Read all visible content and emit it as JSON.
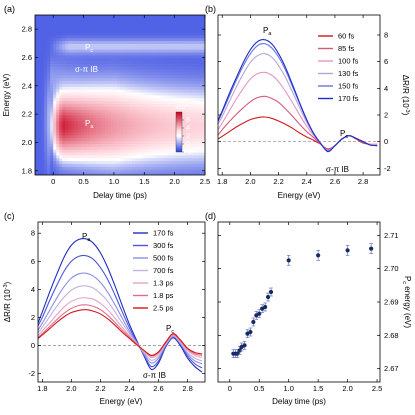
{
  "chart_data": [
    {
      "panel": "(a)",
      "type": "heatmap",
      "xlabel": "Delay time (ps)",
      "ylabel": "Energy (eV)",
      "xlim": [
        -0.3,
        2.5
      ],
      "ylim": [
        1.77,
        2.9
      ],
      "xticks": [
        "0",
        "0.5",
        "1.0",
        "1.5",
        "2.0",
        "2.5"
      ],
      "yticks": [
        "1.8",
        "2.0",
        "2.2",
        "2.4",
        "2.6",
        "2.8"
      ],
      "annotations": [
        "Pc",
        "σ-π IB",
        "Pa"
      ],
      "colorbar": {
        "title": "x10-3",
        "ticks": [
          "6",
          "4",
          "2",
          "0",
          "-2"
        ],
        "range": [
          -2,
          8
        ]
      },
      "colors": {
        "high": "#c8001e",
        "mid": "#ffffff",
        "low": "#2a3fe0"
      }
    },
    {
      "panel": "(b)",
      "type": "line",
      "xlabel": "Energy (eV)",
      "ylabel": "ΔR/R (10-3)",
      "xlim": [
        1.77,
        2.92
      ],
      "ylim": [
        -2.5,
        9.5
      ],
      "xticks": [
        "1.8",
        "2.0",
        "2.2",
        "2.4",
        "2.6",
        "2.8"
      ],
      "yticks": [
        "-2",
        "0",
        "2",
        "4",
        "6",
        "8"
      ],
      "y_axis_side": "right",
      "legend": "right",
      "annotations": [
        "Pa",
        "Pc",
        "σ-π IB"
      ],
      "x": [
        1.77,
        1.8,
        1.85,
        1.9,
        1.95,
        2.0,
        2.05,
        2.1,
        2.15,
        2.2,
        2.25,
        2.3,
        2.35,
        2.4,
        2.45,
        2.5,
        2.55,
        2.6,
        2.65,
        2.7,
        2.75,
        2.8,
        2.85,
        2.9
      ],
      "series": [
        {
          "name": "60 fs",
          "color": "#d11a1a",
          "values": [
            0.2,
            0.4,
            0.75,
            1.1,
            1.4,
            1.65,
            1.8,
            1.85,
            1.75,
            1.55,
            1.3,
            1.0,
            0.65,
            0.35,
            0.1,
            -0.2,
            -0.55,
            -0.3,
            0.2,
            0.45,
            0.2,
            -0.1,
            -0.2,
            -0.2
          ]
        },
        {
          "name": "85 fs",
          "color": "#d65a78",
          "values": [
            0.5,
            0.9,
            1.5,
            2.05,
            2.55,
            3.0,
            3.3,
            3.4,
            3.25,
            2.95,
            2.45,
            1.9,
            1.3,
            0.75,
            0.3,
            -0.2,
            -0.6,
            -0.3,
            0.2,
            0.45,
            0.25,
            -0.05,
            -0.2,
            -0.2
          ]
        },
        {
          "name": "100 fs",
          "color": "#e596be",
          "values": [
            0.9,
            1.4,
            2.3,
            3.2,
            4.0,
            4.7,
            5.1,
            5.2,
            5.0,
            4.5,
            3.75,
            2.9,
            2.0,
            1.15,
            0.45,
            -0.15,
            -0.65,
            -0.3,
            0.2,
            0.45,
            0.25,
            0.0,
            -0.2,
            -0.2
          ]
        },
        {
          "name": "130 fs",
          "color": "#b7a3dc",
          "values": [
            1.3,
            1.9,
            3.0,
            4.1,
            5.1,
            5.95,
            6.45,
            6.6,
            6.35,
            5.7,
            4.8,
            3.7,
            2.55,
            1.45,
            0.55,
            -0.15,
            -0.7,
            -0.3,
            0.2,
            0.45,
            0.25,
            0.0,
            -0.25,
            -0.25
          ]
        },
        {
          "name": "150 fs",
          "color": "#6a73e4",
          "values": [
            1.5,
            2.2,
            3.4,
            4.6,
            5.7,
            6.6,
            7.2,
            7.35,
            7.05,
            6.35,
            5.35,
            4.1,
            2.85,
            1.6,
            0.6,
            -0.15,
            -0.7,
            -0.3,
            0.2,
            0.45,
            0.25,
            0.0,
            -0.25,
            -0.3
          ]
        },
        {
          "name": "170 fs",
          "color": "#1f2ec4",
          "values": [
            1.6,
            2.3,
            3.6,
            4.8,
            5.95,
            6.9,
            7.5,
            7.65,
            7.35,
            6.6,
            5.55,
            4.25,
            2.9,
            1.65,
            0.6,
            -0.15,
            -0.75,
            -0.3,
            0.2,
            0.45,
            0.25,
            0.0,
            -0.25,
            -0.3
          ]
        }
      ]
    },
    {
      "panel": "(c)",
      "type": "line",
      "xlabel": "Energy (eV)",
      "ylabel": "ΔR/R (10-3)",
      "xlim": [
        1.77,
        2.92
      ],
      "ylim": [
        -2.6,
        8.8
      ],
      "xticks": [
        "1.8",
        "2.0",
        "2.2",
        "2.4",
        "2.6",
        "2.8"
      ],
      "yticks": [
        "-2",
        "0",
        "2",
        "4",
        "6",
        "8"
      ],
      "legend": "right",
      "annotations": [
        "Pa",
        "Pc",
        "σ-π IB"
      ],
      "x": [
        1.77,
        1.8,
        1.85,
        1.9,
        1.95,
        2.0,
        2.05,
        2.1,
        2.15,
        2.2,
        2.25,
        2.3,
        2.35,
        2.4,
        2.45,
        2.5,
        2.55,
        2.6,
        2.65,
        2.7,
        2.75,
        2.8,
        2.85,
        2.9
      ],
      "series": [
        {
          "name": "170 fs",
          "color": "#1f2ec4",
          "values": [
            1.6,
            2.4,
            3.8,
            5.1,
            6.3,
            7.15,
            7.55,
            7.6,
            7.3,
            6.6,
            5.55,
            4.25,
            2.85,
            1.5,
            0.35,
            -0.75,
            -1.7,
            -1.25,
            -0.1,
            0.55,
            0.0,
            -0.9,
            -1.5,
            -1.9
          ]
        },
        {
          "name": "300 fs",
          "color": "#4c55d8",
          "values": [
            1.4,
            2.0,
            3.2,
            4.3,
            5.3,
            6.0,
            6.35,
            6.4,
            6.15,
            5.55,
            4.7,
            3.6,
            2.4,
            1.25,
            0.25,
            -0.7,
            -1.5,
            -1.1,
            -0.05,
            0.6,
            0.1,
            -0.75,
            -1.3,
            -1.6
          ]
        },
        {
          "name": "500 fs",
          "color": "#8a8fe6",
          "values": [
            1.1,
            1.6,
            2.5,
            3.4,
            4.2,
            4.8,
            5.1,
            5.15,
            4.95,
            4.5,
            3.8,
            2.9,
            1.95,
            1.0,
            0.2,
            -0.6,
            -1.25,
            -0.9,
            0.05,
            0.65,
            0.15,
            -0.6,
            -1.1,
            -1.3
          ]
        },
        {
          "name": "700 fs",
          "color": "#c2b2e0",
          "values": [
            0.9,
            1.3,
            2.05,
            2.8,
            3.45,
            3.95,
            4.2,
            4.25,
            4.1,
            3.7,
            3.15,
            2.4,
            1.6,
            0.85,
            0.15,
            -0.5,
            -1.05,
            -0.75,
            0.1,
            0.7,
            0.2,
            -0.5,
            -0.9,
            -1.1
          ]
        },
        {
          "name": "1.3 ps",
          "color": "#e8a3c6",
          "values": [
            0.7,
            1.05,
            1.6,
            2.2,
            2.75,
            3.15,
            3.35,
            3.4,
            3.3,
            3.0,
            2.55,
            1.95,
            1.3,
            0.7,
            0.15,
            -0.4,
            -0.85,
            -0.6,
            0.15,
            0.75,
            0.3,
            -0.35,
            -0.7,
            -0.85
          ]
        },
        {
          "name": "1.8 ps",
          "color": "#dd6f8e",
          "values": [
            0.55,
            0.85,
            1.35,
            1.85,
            2.3,
            2.65,
            2.85,
            2.9,
            2.8,
            2.55,
            2.15,
            1.65,
            1.1,
            0.6,
            0.1,
            -0.35,
            -0.75,
            -0.5,
            0.2,
            0.8,
            0.35,
            -0.25,
            -0.6,
            -0.7
          ]
        },
        {
          "name": "2.5 ps",
          "color": "#d11a1a",
          "values": [
            0.5,
            0.75,
            1.2,
            1.65,
            2.05,
            2.35,
            2.5,
            2.55,
            2.45,
            2.25,
            1.9,
            1.45,
            0.95,
            0.5,
            0.05,
            -0.35,
            -0.7,
            -0.45,
            0.25,
            0.85,
            0.4,
            -0.2,
            -0.5,
            -0.6
          ]
        }
      ]
    },
    {
      "panel": "(d)",
      "type": "scatter",
      "xlabel": "Delay time (ps)",
      "ylabel": "Pc energy (eV)",
      "xlim": [
        -0.2,
        2.55
      ],
      "ylim": [
        2.666,
        2.714
      ],
      "xticks": [
        "0",
        "0.5",
        "1.0",
        "1.5",
        "2.0",
        "2.5"
      ],
      "yticks": [
        "2.67",
        "2.68",
        "2.69",
        "2.70",
        "2.71"
      ],
      "y_axis_side": "right",
      "x": [
        0.06,
        0.1,
        0.13,
        0.17,
        0.2,
        0.25,
        0.3,
        0.35,
        0.4,
        0.45,
        0.5,
        0.55,
        0.6,
        0.65,
        0.7,
        1.0,
        1.5,
        2.0,
        2.4
      ],
      "y": [
        2.6745,
        2.6745,
        2.6745,
        2.6755,
        2.6765,
        2.677,
        2.6805,
        2.681,
        2.684,
        2.686,
        2.6865,
        2.688,
        2.6885,
        2.6915,
        2.693,
        2.7025,
        2.704,
        2.7055,
        2.706
      ],
      "yerr": [
        0.0012,
        0.0012,
        0.0012,
        0.0012,
        0.0012,
        0.0012,
        0.0012,
        0.0012,
        0.0012,
        0.0012,
        0.0012,
        0.0012,
        0.0012,
        0.0012,
        0.0012,
        0.0015,
        0.0015,
        0.0015,
        0.0015
      ],
      "marker_color": "#1a2a5e"
    }
  ]
}
